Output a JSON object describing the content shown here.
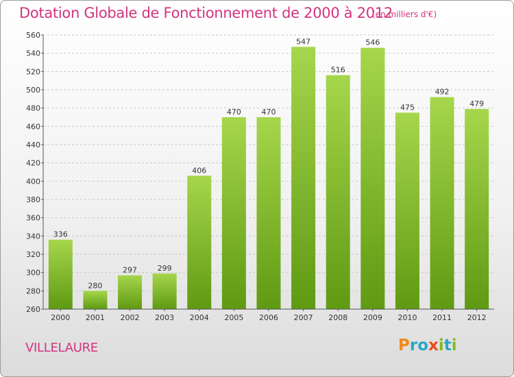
{
  "header": {
    "title": "Dotation Globale de Fonctionnement de 2000 à 2012",
    "subtitle": "(en milliers d'€)"
  },
  "commune": "VILLELAURE",
  "logo": {
    "letters": [
      "P",
      "r",
      "o",
      "x",
      "i",
      "t",
      "i"
    ],
    "colors": [
      "#f08a1c",
      "#2aa6c4",
      "#2aa6c4",
      "#e8491d",
      "#88b820",
      "#2aa6c4",
      "#88b820"
    ]
  },
  "colors": {
    "bar_light": "#a6d64c",
    "bar_dark": "#5f9a12",
    "text_accent": "#d2347e"
  },
  "chart_data": {
    "type": "bar",
    "categories": [
      "2000",
      "2001",
      "2002",
      "2003",
      "2004",
      "2005",
      "2006",
      "2007",
      "2008",
      "2009",
      "2010",
      "2011",
      "2012"
    ],
    "values": [
      336,
      280,
      297,
      299,
      406,
      470,
      470,
      547,
      516,
      546,
      475,
      492,
      479
    ],
    "ylim": [
      260,
      560
    ],
    "yticks": [
      260,
      280,
      300,
      320,
      340,
      360,
      380,
      400,
      420,
      440,
      460,
      480,
      500,
      520,
      540,
      560
    ],
    "grid": true,
    "title": "Dotation Globale de Fonctionnement de 2000 à 2012",
    "xlabel": "",
    "ylabel": ""
  }
}
